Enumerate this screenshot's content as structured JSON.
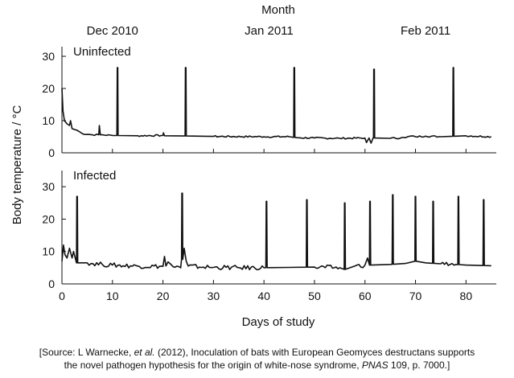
{
  "top_axis": {
    "title": "Month",
    "labels": [
      {
        "text": "Dec 2010",
        "day": 10
      },
      {
        "text": "Jan 2011",
        "day": 41
      },
      {
        "text": "Feb 2011",
        "day": 72
      }
    ]
  },
  "y_axis_title": "Body temperature / °C",
  "x_axis_title": "Days of study",
  "source": {
    "part1": "[Source: L Warnecke, ",
    "et_al": "et al.",
    "part2": " (2012), Inoculation of bats with European Geomyces destructans supports",
    "part3": "the novel pathogen hypothesis for the origin of white-nose syndrome, ",
    "journal": "PNAS",
    "part4": " 109, p. 7000.]"
  },
  "chart_data": [
    {
      "type": "line",
      "label": "Uninfected",
      "xlabel": "Days of study",
      "ylabel": "Body temperature / °C",
      "xlim": [
        0,
        86
      ],
      "ylim": [
        0,
        33
      ],
      "xticks": [
        0,
        10,
        20,
        30,
        40,
        50,
        60,
        70,
        80
      ],
      "yticks": [
        0,
        10,
        20,
        30
      ],
      "grid": false,
      "baseline": [
        [
          0,
          20
        ],
        [
          0.2,
          13
        ],
        [
          0.5,
          10
        ],
        [
          1,
          9
        ],
        [
          1.5,
          8.5
        ],
        [
          1.7,
          10
        ],
        [
          2,
          7.5
        ],
        [
          3,
          7
        ],
        [
          4,
          6
        ],
        [
          6,
          5.6
        ],
        [
          7.3,
          5.6
        ],
        [
          7.4,
          8.5
        ],
        [
          7.6,
          5.6
        ],
        [
          10,
          5.4
        ],
        [
          15,
          5.3
        ],
        [
          20,
          5.4
        ],
        [
          20.1,
          6.2
        ],
        [
          20.3,
          5.3
        ],
        [
          30,
          5.1
        ],
        [
          40,
          5
        ],
        [
          45,
          5
        ],
        [
          46.5,
          4.7
        ],
        [
          50,
          4.6
        ],
        [
          55,
          4.5
        ],
        [
          60,
          4.6
        ],
        [
          60.3,
          3.2
        ],
        [
          60.8,
          4.6
        ],
        [
          61.2,
          3
        ],
        [
          61.6,
          4.6
        ],
        [
          65,
          4.5
        ],
        [
          68,
          4.7
        ],
        [
          69,
          5.2
        ],
        [
          70,
          5
        ],
        [
          72,
          5.2
        ],
        [
          75,
          5
        ],
        [
          80,
          5.3
        ],
        [
          85,
          5
        ]
      ],
      "arousals": [
        11,
        24.5,
        46,
        61.8,
        77.5
      ],
      "arousal_peaks": [
        26.5,
        26.5,
        26.5,
        26,
        26.5
      ]
    },
    {
      "type": "line",
      "label": "Infected",
      "xlabel": "Days of study",
      "ylabel": "Body temperature / °C",
      "xlim": [
        0,
        86
      ],
      "ylim": [
        0,
        35
      ],
      "xticks": [
        0,
        10,
        20,
        30,
        40,
        50,
        60,
        70,
        80
      ],
      "yticks": [
        0,
        10,
        20,
        30
      ],
      "grid": false,
      "baseline": [
        [
          0,
          7
        ],
        [
          0.3,
          12
        ],
        [
          0.6,
          9
        ],
        [
          1,
          8
        ],
        [
          1.5,
          11
        ],
        [
          2,
          8
        ],
        [
          2.3,
          10
        ],
        [
          3,
          6.5
        ],
        [
          5,
          6.5
        ],
        [
          8,
          6
        ],
        [
          10,
          5.8
        ],
        [
          15,
          5.5
        ],
        [
          20,
          5.4
        ],
        [
          20.3,
          8.5
        ],
        [
          20.6,
          5.5
        ],
        [
          21,
          6.8
        ],
        [
          22,
          5.3
        ],
        [
          23.5,
          5
        ],
        [
          24.2,
          11
        ],
        [
          24.6,
          7
        ],
        [
          25,
          5.5
        ],
        [
          28,
          5.2
        ],
        [
          30,
          5.1
        ],
        [
          35,
          5
        ],
        [
          40,
          5
        ],
        [
          45,
          5.1
        ],
        [
          50,
          5.2
        ],
        [
          55,
          5
        ],
        [
          56,
          4.5
        ],
        [
          58,
          5.5
        ],
        [
          60,
          5.8
        ],
        [
          60.5,
          8
        ],
        [
          61,
          5.8
        ],
        [
          65,
          6
        ],
        [
          68,
          6.3
        ],
        [
          70,
          7
        ],
        [
          72,
          6.5
        ],
        [
          75,
          6.2
        ],
        [
          78,
          6
        ],
        [
          80,
          5.8
        ],
        [
          85,
          5.6
        ]
      ],
      "arousals": [
        3,
        23.8,
        40.5,
        48.5,
        56,
        61,
        65.5,
        70,
        73.5,
        78.5,
        83.5
      ],
      "arousal_peaks": [
        27,
        28,
        25.5,
        26,
        25,
        25.5,
        27.5,
        27,
        25.5,
        27,
        26
      ]
    }
  ]
}
